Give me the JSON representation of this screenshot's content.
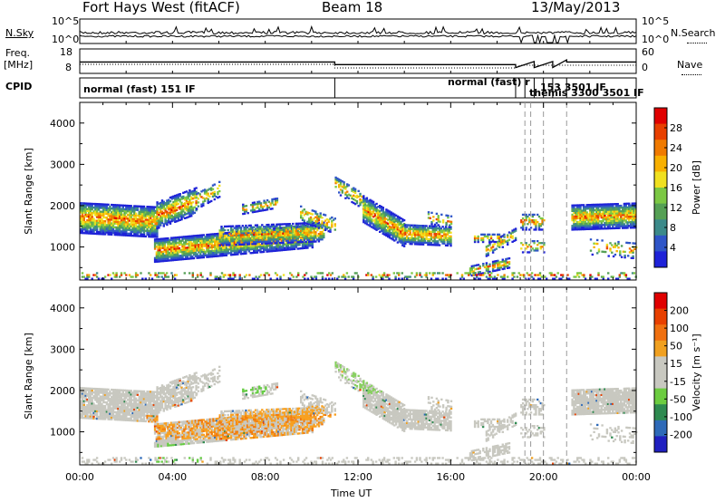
{
  "header": {
    "station": "Fort Hays West (fitACF)",
    "beam": "Beam 18",
    "date": "13/May/2013"
  },
  "strip_labels": {
    "nsky": "N.Sky",
    "nsearch": "N.Search",
    "freq_top": "Freq.",
    "freq_unit": "[MHz]",
    "nave": "Nave",
    "cpid": "CPID"
  },
  "strip_ticks": {
    "noise_left": [
      "10^5",
      "10^0"
    ],
    "noise_right": [
      "10^5",
      "10^0"
    ],
    "freq_left": [
      "18",
      "8"
    ],
    "nave_right": [
      "60",
      "0"
    ]
  },
  "cpid_labels": {
    "first": "normal (fast) 151 IF",
    "second": "normal (fast) r",
    "overlap": "153 3501 IF",
    "third": "themis 3300 3501 IF"
  },
  "chart_data": [
    {
      "type": "heatmap",
      "name": "power",
      "ylabel": "Slant Range [km]",
      "xlabel": "Time UT",
      "x_ticks": [
        "00:00",
        "04:00",
        "08:00",
        "12:00",
        "16:00",
        "20:00",
        "00:00"
      ],
      "y_ticks": [
        1000,
        2000,
        3000,
        4000
      ],
      "ylim": [
        200,
        4500
      ],
      "colorbar_label": "Power [dB]",
      "colorbar_ticks": [
        4,
        8,
        12,
        16,
        20,
        24,
        28
      ],
      "colorbar_colors": [
        "#1e22d8",
        "#2f55c8",
        "#3c8a8a",
        "#55a055",
        "#7cc844",
        "#f0e020",
        "#f8b000",
        "#f07a00",
        "#e84000",
        "#e00000"
      ]
    },
    {
      "type": "heatmap",
      "name": "velocity",
      "ylabel": "Slant Range [km]",
      "xlabel": "Time UT",
      "x_ticks": [
        "00:00",
        "04:00",
        "08:00",
        "12:00",
        "16:00",
        "20:00",
        "00:00"
      ],
      "y_ticks": [
        1000,
        2000,
        3000,
        4000
      ],
      "ylim": [
        200,
        4500
      ],
      "colorbar_label": "Velocity [m s⁻¹]",
      "colorbar_ticks": [
        200,
        100,
        50,
        15,
        -15,
        -50,
        -100,
        -200
      ],
      "colorbar_colors": [
        "#2020c0",
        "#2e6ab8",
        "#2e8a50",
        "#6ccc40",
        "#c8c8c0",
        "#c8c8c0",
        "#f0a020",
        "#f07010",
        "#e84000",
        "#e00000"
      ]
    }
  ],
  "x_axis_label": "Time UT"
}
